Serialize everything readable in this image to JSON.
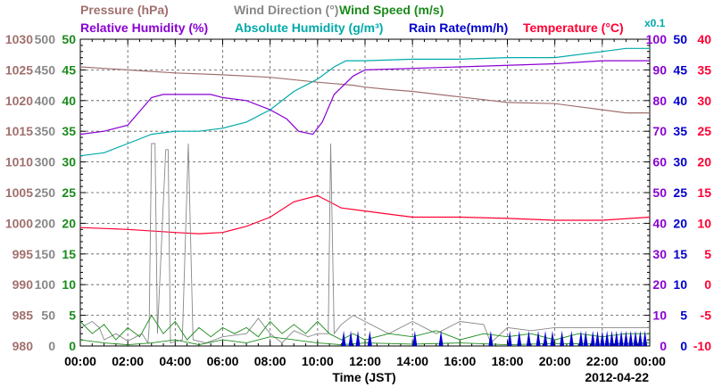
{
  "chart_data": {
    "type": "line",
    "legend": {
      "row1": [
        {
          "key": "pressure",
          "text": "Pressure (hPa)",
          "color": "#a0706e"
        },
        {
          "key": "wind_dir",
          "text": "Wind Direction (°)",
          "color": "#888888"
        },
        {
          "key": "wind_speed",
          "text": "Wind Speed (m/s)",
          "color": "#1a8a1a"
        }
      ],
      "row2": [
        {
          "key": "rh",
          "text": "Relative Humidity (%)",
          "color": "#8a00d4"
        },
        {
          "key": "ah",
          "text": "Absolute Humidity (g/m³)",
          "color": "#00aaaa"
        },
        {
          "key": "rain",
          "text": "Rain Rate(mm/h)",
          "color": "#0000cc"
        },
        {
          "key": "temp",
          "text": "Temperature (°C)",
          "color": "#ff0033"
        }
      ],
      "ah_scale_note": "x0.1"
    },
    "xlabel": "Time (JST)",
    "date": "2012-04-22",
    "x_tick_labels": [
      "00:00",
      "02:00",
      "04:00",
      "06:00",
      "08:00",
      "10:00",
      "12:00",
      "14:00",
      "16:00",
      "18:00",
      "20:00",
      "22:00",
      "00:00"
    ],
    "x_range_hours": [
      0,
      24
    ],
    "grid": true,
    "axes": {
      "pressure": {
        "range": [
          980,
          1030
        ],
        "ticks": [
          980,
          985,
          990,
          995,
          1000,
          1005,
          1010,
          1015,
          1020,
          1025,
          1030
        ],
        "color": "#a0706e"
      },
      "wind_dir": {
        "range": [
          0,
          500
        ],
        "ticks": [
          0,
          50,
          100,
          150,
          200,
          250,
          300,
          350,
          400,
          450,
          500
        ],
        "color": "#888888"
      },
      "wind_speed": {
        "range": [
          0,
          50
        ],
        "ticks": [
          0,
          5,
          10,
          15,
          20,
          25,
          30,
          35,
          40,
          45,
          50
        ],
        "color": "#1a8a1a"
      },
      "rh": {
        "range": [
          0,
          100
        ],
        "ticks": [
          0,
          10,
          20,
          30,
          40,
          50,
          60,
          70,
          80,
          90,
          100
        ],
        "color": "#8a00d4"
      },
      "rain": {
        "range": [
          0,
          50
        ],
        "ticks": [
          0,
          5,
          10,
          15,
          20,
          25,
          30,
          35,
          40,
          45,
          50
        ],
        "color": "#0000cc"
      },
      "temp": {
        "range": [
          -10,
          40
        ],
        "ticks": [
          -10,
          -5,
          0,
          5,
          10,
          15,
          20,
          25,
          30,
          35,
          40
        ],
        "color": "#ff0033"
      }
    },
    "series": [
      {
        "key": "pressure",
        "axis": "pressure",
        "color": "#a0706e",
        "points": [
          [
            0,
            1025.5
          ],
          [
            2,
            1025
          ],
          [
            4,
            1024.5
          ],
          [
            6,
            1024.2
          ],
          [
            8,
            1023.8
          ],
          [
            10,
            1023
          ],
          [
            11.5,
            1022.5
          ],
          [
            12,
            1022.2
          ],
          [
            13,
            1021.8
          ],
          [
            14,
            1021.5
          ],
          [
            16,
            1020.6
          ],
          [
            18,
            1019.7
          ],
          [
            20,
            1019.5
          ],
          [
            22,
            1018.5
          ],
          [
            23,
            1018
          ],
          [
            24,
            1018
          ]
        ]
      },
      {
        "key": "rh",
        "axis": "rh",
        "color": "#8a00d4",
        "points": [
          [
            0,
            69
          ],
          [
            1,
            70
          ],
          [
            2,
            72
          ],
          [
            3,
            81
          ],
          [
            3.5,
            82
          ],
          [
            5.5,
            82
          ],
          [
            6,
            81
          ],
          [
            7,
            80
          ],
          [
            8,
            77
          ],
          [
            8.7,
            74
          ],
          [
            9.2,
            70
          ],
          [
            9.8,
            69
          ],
          [
            10.2,
            73
          ],
          [
            10.7,
            82
          ],
          [
            11.5,
            88
          ],
          [
            12,
            90
          ],
          [
            16,
            91
          ],
          [
            20,
            92
          ],
          [
            22,
            93
          ],
          [
            24,
            93
          ]
        ]
      },
      {
        "key": "ah",
        "axis": "rh",
        "color": "#00aaaa",
        "points": [
          [
            0,
            62
          ],
          [
            1,
            63
          ],
          [
            2,
            66
          ],
          [
            3,
            69
          ],
          [
            4,
            70
          ],
          [
            5,
            70
          ],
          [
            6,
            71
          ],
          [
            7,
            73
          ],
          [
            8,
            77
          ],
          [
            9,
            83
          ],
          [
            10,
            87
          ],
          [
            10.7,
            91
          ],
          [
            11.2,
            93
          ],
          [
            12,
            93
          ],
          [
            14,
            93.5
          ],
          [
            16,
            93.5
          ],
          [
            18,
            94
          ],
          [
            19,
            94
          ],
          [
            20,
            94
          ],
          [
            22,
            96
          ],
          [
            23,
            97
          ],
          [
            24,
            97
          ]
        ]
      },
      {
        "key": "temp",
        "axis": "temp",
        "color": "#ff0033",
        "points": [
          [
            0,
            9.3
          ],
          [
            2,
            9
          ],
          [
            4,
            8.5
          ],
          [
            5,
            8.3
          ],
          [
            6,
            8.5
          ],
          [
            7,
            9.5
          ],
          [
            8,
            11
          ],
          [
            9,
            13.5
          ],
          [
            10,
            14.5
          ],
          [
            11,
            12.5
          ],
          [
            12,
            12
          ],
          [
            13,
            11.5
          ],
          [
            14,
            11
          ],
          [
            16,
            11
          ],
          [
            18,
            10.8
          ],
          [
            20,
            10.5
          ],
          [
            22,
            10.5
          ],
          [
            24,
            11
          ]
        ]
      },
      {
        "key": "wind_dir",
        "axis": "wind_dir",
        "color": "#888888",
        "points": [
          [
            0,
            30
          ],
          [
            0.5,
            40
          ],
          [
            0.8,
            30
          ],
          [
            1,
            10
          ],
          [
            1.5,
            20
          ],
          [
            2,
            8
          ],
          [
            2.6,
            20
          ],
          [
            2.85,
            5
          ],
          [
            2.9,
            30
          ],
          [
            3.0,
            330
          ],
          [
            3.15,
            330
          ],
          [
            3.25,
            20
          ],
          [
            3.6,
            320
          ],
          [
            3.7,
            320
          ],
          [
            3.8,
            5
          ],
          [
            4.3,
            10
          ],
          [
            4.55,
            330
          ],
          [
            4.75,
            10
          ],
          [
            5.3,
            5
          ],
          [
            6,
            15
          ],
          [
            7,
            20
          ],
          [
            7.5,
            45
          ],
          [
            8,
            20
          ],
          [
            8.5,
            5
          ],
          [
            9,
            25
          ],
          [
            9.6,
            15
          ],
          [
            10,
            20
          ],
          [
            10.45,
            20
          ],
          [
            10.55,
            330
          ],
          [
            10.7,
            20
          ],
          [
            11,
            35
          ],
          [
            11.5,
            50
          ],
          [
            12,
            40
          ],
          [
            13,
            20
          ],
          [
            14,
            40
          ],
          [
            15,
            20
          ],
          [
            16,
            40
          ],
          [
            17,
            35
          ],
          [
            17.3,
            5
          ],
          [
            18,
            30
          ],
          [
            19,
            25
          ],
          [
            20,
            30
          ],
          [
            21,
            30
          ],
          [
            22,
            30
          ],
          [
            23,
            30
          ],
          [
            24,
            30
          ]
        ]
      },
      {
        "key": "wind_speed",
        "axis": "wind_speed",
        "color": "#1a8a1a",
        "points": [
          [
            0,
            4
          ],
          [
            0.5,
            2
          ],
          [
            1,
            3.5
          ],
          [
            1.5,
            1
          ],
          [
            2,
            3
          ],
          [
            2.5,
            1.5
          ],
          [
            3,
            5
          ],
          [
            3.5,
            2
          ],
          [
            4,
            4
          ],
          [
            4.5,
            1
          ],
          [
            5,
            3
          ],
          [
            5.5,
            1.5
          ],
          [
            6,
            3
          ],
          [
            6.5,
            2
          ],
          [
            7,
            3
          ],
          [
            7.5,
            1.5
          ],
          [
            8,
            4
          ],
          [
            8.5,
            2
          ],
          [
            9,
            3.5
          ],
          [
            9.5,
            2
          ],
          [
            10,
            4
          ],
          [
            10.5,
            2
          ],
          [
            11,
            1
          ],
          [
            11.5,
            2
          ],
          [
            12,
            1
          ],
          [
            13,
            2
          ],
          [
            14,
            1.5
          ],
          [
            15,
            2.5
          ],
          [
            16,
            1
          ],
          [
            17,
            2
          ],
          [
            18,
            1.5
          ],
          [
            19,
            2
          ],
          [
            20,
            1
          ],
          [
            21,
            2
          ],
          [
            22,
            1.5
          ],
          [
            23,
            2
          ],
          [
            24,
            2
          ]
        ]
      },
      {
        "key": "wind_speed_2",
        "axis": "wind_speed",
        "color": "#1a8a1a",
        "points": [
          [
            0,
            1
          ],
          [
            1,
            0.5
          ],
          [
            2,
            0.2
          ],
          [
            3,
            0.5
          ],
          [
            4,
            1
          ],
          [
            5,
            0.2
          ],
          [
            6,
            1
          ],
          [
            7,
            0.5
          ],
          [
            8,
            1.5
          ],
          [
            9,
            1
          ],
          [
            10,
            0.5
          ],
          [
            11,
            0.2
          ],
          [
            12,
            0.5
          ],
          [
            14,
            0.3
          ],
          [
            16,
            0.5
          ],
          [
            18,
            0.2
          ],
          [
            20,
            0.4
          ],
          [
            22,
            0.3
          ],
          [
            24,
            0.5
          ]
        ]
      }
    ],
    "rain_spikes_hours": [
      11.1,
      11.4,
      11.7,
      12.2,
      14.1,
      15.2,
      17.3,
      18.1,
      18.5,
      18.9,
      19.3,
      19.6,
      19.9,
      20.3,
      20.7,
      21.1,
      21.3,
      21.6,
      21.8,
      22.0,
      22.2,
      22.4,
      22.6,
      22.8,
      23.0,
      23.2,
      23.4,
      23.6,
      23.8
    ],
    "rain_spike_value": 2.5
  }
}
